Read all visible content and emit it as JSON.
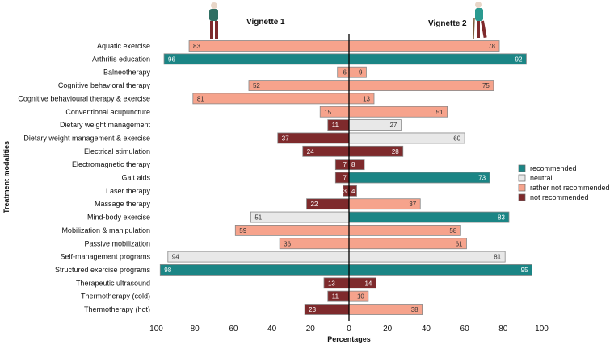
{
  "chart_data": {
    "type": "bar",
    "orientation": "horizontal-diverging",
    "xlabel": "Percentages",
    "ylabel": "Treatment modalities",
    "xlim": [
      -100,
      100
    ],
    "xticks": [
      "100",
      "80",
      "60",
      "40",
      "20",
      "0",
      "20",
      "40",
      "60",
      "80",
      "100"
    ],
    "panels": [
      "Vignette 1",
      "Vignette 2"
    ],
    "legend": {
      "placement": "right",
      "entries": [
        {
          "key": "rec",
          "label": "recommended",
          "color": "#1b8585"
        },
        {
          "key": "neu",
          "label": "neutral",
          "color": "#e8e8e8"
        },
        {
          "key": "rnr",
          "label": "rather not recommended",
          "color": "#f6a38c"
        },
        {
          "key": "nr",
          "label": "not recommended",
          "color": "#7e2a2c"
        }
      ]
    },
    "categories": [
      "Aquatic exercise",
      "Arthritis education",
      "Balneotherapy",
      "Cognitive behavioral therapy",
      "Cognitive behavioural therapy & exercise",
      "Conventional acupuncture",
      "Dietary weight management",
      "Dietary weight management & exercise",
      "Electrical stimulation",
      "Electromagnetic therapy",
      "Gait aids",
      "Laser therapy",
      "Massage therapy",
      "Mind-body exercise",
      "Mobilization & manipulation",
      "Passive mobilization",
      "Self-management programs",
      "Structured exercise programs",
      "Therapeutic ultrasound",
      "Thermotherapy (cold)",
      "Thermotherapy (hot)"
    ],
    "series": [
      {
        "name": "Vignette 1",
        "side": "left",
        "values": [
          83,
          96,
          6,
          52,
          81,
          15,
          11,
          37,
          24,
          7,
          7,
          3,
          22,
          51,
          59,
          36,
          94,
          98,
          13,
          11,
          23
        ],
        "classes": [
          "rnr",
          "rec",
          "rnr",
          "rnr",
          "rnr",
          "rnr",
          "nr",
          "nr",
          "nr",
          "nr",
          "nr",
          "nr",
          "nr",
          "neu",
          "rnr",
          "rnr",
          "neu",
          "rec",
          "nr",
          "nr",
          "nr"
        ]
      },
      {
        "name": "Vignette 2",
        "side": "right",
        "values": [
          78,
          92,
          9,
          75,
          13,
          51,
          27,
          60,
          28,
          8,
          73,
          4,
          37,
          83,
          58,
          61,
          81,
          95,
          14,
          10,
          38
        ],
        "classes": [
          "rnr",
          "rec",
          "rnr",
          "rnr",
          "rnr",
          "rnr",
          "neu",
          "neu",
          "nr",
          "nr",
          "rec",
          "nr",
          "rnr",
          "rec",
          "rnr",
          "rnr",
          "neu",
          "rec",
          "nr",
          "rnr",
          "rnr"
        ]
      }
    ]
  }
}
